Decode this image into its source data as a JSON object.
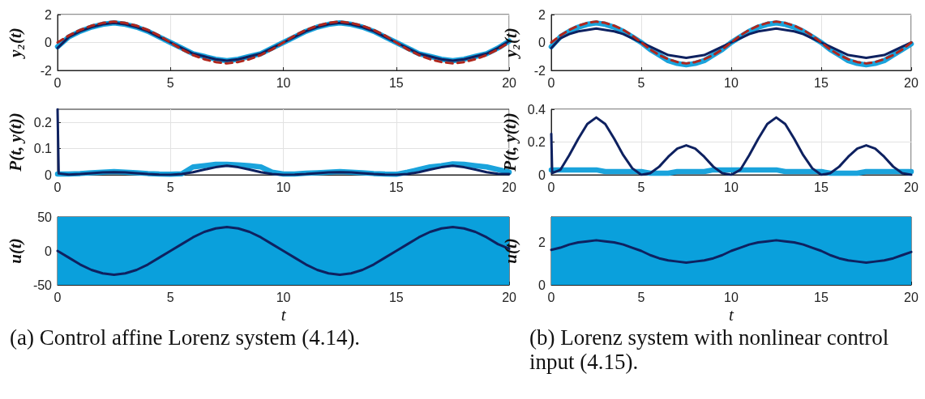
{
  "chart_data": [
    {
      "type": "line",
      "ylabel": "y₂(t)",
      "x": [
        0,
        0.5,
        1,
        1.5,
        2,
        2.5,
        3,
        3.5,
        4,
        4.5,
        5,
        5.5,
        6,
        6.5,
        7,
        7.5,
        8,
        8.5,
        9,
        9.5,
        10,
        10.5,
        11,
        11.5,
        12,
        12.5,
        13,
        13.5,
        14,
        14.5,
        15,
        15.5,
        16,
        16.5,
        17,
        17.5,
        18,
        18.5,
        19,
        19.5,
        20
      ],
      "xlim": [
        0,
        20
      ],
      "xticks": [
        0,
        5,
        10,
        15,
        20
      ],
      "ylim": [
        -2,
        2
      ],
      "yticks": [
        -2,
        0,
        2
      ],
      "grid": true,
      "marker": "none",
      "series": [
        {
          "color": "#1aa3dc",
          "values": [
            -0.3,
            0.4,
            0.8,
            1.1,
            1.3,
            1.4,
            1.3,
            1.1,
            0.8,
            0.4,
            0,
            -0.4,
            -0.8,
            -1.0,
            -1.2,
            -1.3,
            -1.2,
            -1.0,
            -0.8,
            -0.4,
            0,
            0.4,
            0.8,
            1.1,
            1.3,
            1.4,
            1.3,
            1.1,
            0.8,
            0.4,
            0,
            -0.4,
            -0.8,
            -1.0,
            -1.2,
            -1.3,
            -1.2,
            -1.0,
            -0.8,
            -0.4,
            0.1
          ]
        },
        {
          "color": "#0e2160",
          "values": [
            -0.4,
            0.4,
            0.8,
            1.1,
            1.3,
            1.4,
            1.3,
            1.1,
            0.8,
            0.4,
            0,
            -0.4,
            -0.8,
            -1.0,
            -1.2,
            -1.3,
            -1.2,
            -1.0,
            -0.8,
            -0.4,
            0,
            0.4,
            0.8,
            1.1,
            1.3,
            1.4,
            1.3,
            1.1,
            0.8,
            0.4,
            0,
            -0.4,
            -0.8,
            -1.0,
            -1.2,
            -1.3,
            -1.2,
            -1.0,
            -0.8,
            -0.4,
            0.1
          ]
        },
        {
          "color": "#b0261c",
          "line_style": "dashed",
          "values": [
            0,
            0.5,
            0.9,
            1.2,
            1.4,
            1.5,
            1.4,
            1.2,
            0.9,
            0.5,
            0,
            -0.5,
            -0.9,
            -1.2,
            -1.4,
            -1.5,
            -1.4,
            -1.2,
            -0.9,
            -0.5,
            0,
            0.5,
            0.9,
            1.2,
            1.4,
            1.5,
            1.4,
            1.2,
            0.9,
            0.5,
            0,
            -0.5,
            -0.9,
            -1.2,
            -1.4,
            -1.5,
            -1.4,
            -1.2,
            -0.9,
            -0.5,
            0
          ]
        }
      ]
    },
    {
      "type": "line",
      "ylabel": "y₂(t)",
      "x": [
        0,
        0.5,
        1,
        1.5,
        2,
        2.5,
        3,
        3.5,
        4,
        4.5,
        5,
        5.5,
        6,
        6.5,
        7,
        7.5,
        8,
        8.5,
        9,
        9.5,
        10,
        10.5,
        11,
        11.5,
        12,
        12.5,
        13,
        13.5,
        14,
        14.5,
        15,
        15.5,
        16,
        16.5,
        17,
        17.5,
        18,
        18.5,
        19,
        19.5,
        20
      ],
      "xlim": [
        0,
        20
      ],
      "xticks": [
        0,
        5,
        10,
        15,
        20
      ],
      "ylim": [
        -2,
        2
      ],
      "yticks": [
        -2,
        0,
        2
      ],
      "grid": true,
      "marker": "none",
      "series": [
        {
          "color": "#1aa3dc",
          "values": [
            -0.3,
            0.4,
            0.8,
            1.1,
            1.3,
            1.4,
            1.3,
            1.1,
            0.8,
            0.4,
            0,
            -0.5,
            -0.9,
            -1.3,
            -1.5,
            -1.6,
            -1.5,
            -1.3,
            -0.9,
            -0.5,
            0,
            0.4,
            0.8,
            1.1,
            1.3,
            1.4,
            1.3,
            1.1,
            0.8,
            0.4,
            0,
            -0.5,
            -0.9,
            -1.3,
            -1.5,
            -1.6,
            -1.5,
            -1.3,
            -0.9,
            -0.5,
            -0.1
          ]
        },
        {
          "color": "#0e2160",
          "values": [
            -0.4,
            0.3,
            0.6,
            0.8,
            0.9,
            1.0,
            0.9,
            0.8,
            0.6,
            0.3,
            0,
            -0.3,
            -0.6,
            -0.9,
            -1.0,
            -1.1,
            -1.0,
            -0.9,
            -0.6,
            -0.3,
            0,
            0.3,
            0.6,
            0.8,
            0.9,
            1.0,
            0.9,
            0.8,
            0.6,
            0.3,
            0,
            -0.3,
            -0.6,
            -0.9,
            -1.0,
            -1.1,
            -1.0,
            -0.9,
            -0.6,
            -0.3,
            0
          ]
        },
        {
          "color": "#b0261c",
          "line_style": "dashed",
          "values": [
            0,
            0.5,
            0.9,
            1.2,
            1.4,
            1.5,
            1.4,
            1.2,
            0.9,
            0.5,
            0,
            -0.5,
            -0.9,
            -1.2,
            -1.4,
            -1.5,
            -1.4,
            -1.2,
            -0.9,
            -0.5,
            0,
            0.5,
            0.9,
            1.2,
            1.4,
            1.5,
            1.4,
            1.2,
            0.9,
            0.5,
            0,
            -0.5,
            -0.9,
            -1.2,
            -1.4,
            -1.5,
            -1.4,
            -1.2,
            -0.9,
            -0.5,
            0
          ]
        }
      ]
    },
    {
      "type": "line",
      "ylabel": "P(t, y(t))",
      "x": [
        0,
        0.5,
        1,
        1.5,
        2,
        2.5,
        3,
        3.5,
        4,
        4.5,
        5,
        5.5,
        6,
        6.5,
        7,
        7.5,
        8,
        8.5,
        9,
        9.5,
        10,
        10.5,
        11,
        11.5,
        12,
        12.5,
        13,
        13.5,
        14,
        14.5,
        15,
        15.5,
        16,
        16.5,
        17,
        17.5,
        18,
        18.5,
        19,
        19.5,
        20
      ],
      "xlim": [
        0,
        20
      ],
      "xticks": [
        0,
        5,
        10,
        15,
        20
      ],
      "ylim": [
        0,
        0.25
      ],
      "yticks": [
        0,
        0.1,
        0.2
      ],
      "grid": true,
      "marker": "none",
      "series": [
        {
          "color": "#1aa3dc",
          "values": [
            0.003,
            0.003,
            0.005,
            0.008,
            0.01,
            0.012,
            0.01,
            0.008,
            0.005,
            0.003,
            0.002,
            0.004,
            0.03,
            0.035,
            0.04,
            0.04,
            0.038,
            0.035,
            0.03,
            0.01,
            0.003,
            0.003,
            0.006,
            0.008,
            0.01,
            0.012,
            0.01,
            0.008,
            0.005,
            0.003,
            0.002,
            0.01,
            0.02,
            0.03,
            0.035,
            0.042,
            0.04,
            0.035,
            0.03,
            0.02,
            0.01
          ]
        },
        {
          "color": "#0e2160",
          "x": [
            0,
            0.05,
            0.5,
            1,
            1.5,
            2,
            2.5,
            3,
            3.5,
            4,
            4.5,
            5,
            5.5,
            6,
            6.5,
            7,
            7.5,
            8,
            8.5,
            9,
            9.5,
            10,
            10.5,
            11,
            11.5,
            12,
            12.5,
            13,
            13.5,
            14,
            14.5,
            15,
            15.5,
            16,
            16.5,
            17,
            17.5,
            18,
            18.5,
            19,
            19.5,
            20
          ],
          "values": [
            0.25,
            0.005,
            0.001,
            0.003,
            0.006,
            0.009,
            0.01,
            0.009,
            0.006,
            0.003,
            0.001,
            0,
            0.003,
            0.01,
            0.02,
            0.029,
            0.035,
            0.029,
            0.02,
            0.01,
            0.003,
            0,
            0.001,
            0.003,
            0.006,
            0.009,
            0.01,
            0.009,
            0.006,
            0.003,
            0.001,
            0,
            0.003,
            0.01,
            0.02,
            0.029,
            0.035,
            0.029,
            0.02,
            0.01,
            0.004,
            0.003
          ]
        }
      ]
    },
    {
      "type": "line",
      "ylabel": "P(t, y(t))",
      "x": [
        0,
        0.5,
        1,
        1.5,
        2,
        2.5,
        3,
        3.5,
        4,
        4.5,
        5,
        5.5,
        6,
        6.5,
        7,
        7.5,
        8,
        8.5,
        9,
        9.5,
        10,
        10.5,
        11,
        11.5,
        12,
        12.5,
        13,
        13.5,
        14,
        14.5,
        15,
        15.5,
        16,
        16.5,
        17,
        17.5,
        18,
        18.5,
        19,
        19.5,
        20
      ],
      "xlim": [
        0,
        20
      ],
      "xticks": [
        0,
        5,
        10,
        15,
        20
      ],
      "ylim": [
        0,
        0.4
      ],
      "yticks": [
        0,
        0.2,
        0.4
      ],
      "grid": true,
      "marker": "none",
      "series": [
        {
          "color": "#1aa3dc",
          "values": [
            0.03,
            0.03,
            0.03,
            0.03,
            0.03,
            0.03,
            0.02,
            0.02,
            0.02,
            0.02,
            0.02,
            0.01,
            0.01,
            0.01,
            0.02,
            0.02,
            0.02,
            0.02,
            0.03,
            0.03,
            0.03,
            0.03,
            0.03,
            0.03,
            0.03,
            0.03,
            0.02,
            0.02,
            0.02,
            0.02,
            0.02,
            0.01,
            0.01,
            0.01,
            0.01,
            0.02,
            0.02,
            0.02,
            0.02,
            0.02,
            0.02
          ]
        },
        {
          "color": "#0e2160",
          "x": [
            0,
            0.05,
            0.5,
            1,
            1.5,
            2,
            2.5,
            3,
            3.5,
            4,
            4.5,
            5,
            5.5,
            6,
            6.5,
            7,
            7.5,
            8,
            8.5,
            9,
            9.5,
            10,
            10.5,
            11,
            11.5,
            12,
            12.5,
            13,
            13.5,
            14,
            14.5,
            15,
            15.5,
            16,
            16.5,
            17,
            17.5,
            18,
            18.5,
            19,
            19.5,
            20
          ],
          "values": [
            0.25,
            0.01,
            0.03,
            0.12,
            0.22,
            0.31,
            0.35,
            0.31,
            0.22,
            0.12,
            0.04,
            0,
            0.01,
            0.05,
            0.11,
            0.16,
            0.18,
            0.16,
            0.11,
            0.05,
            0.01,
            0,
            0.03,
            0.12,
            0.22,
            0.31,
            0.35,
            0.31,
            0.22,
            0.12,
            0.04,
            0,
            0.01,
            0.05,
            0.11,
            0.16,
            0.18,
            0.16,
            0.11,
            0.05,
            0.01,
            0
          ]
        }
      ]
    },
    {
      "type": "line",
      "ylabel": "u(t)",
      "xlabel": "t",
      "x": [
        0,
        0.5,
        1,
        1.5,
        2,
        2.5,
        3,
        3.5,
        4,
        4.5,
        5,
        5.5,
        6,
        6.5,
        7,
        7.5,
        8,
        8.5,
        9,
        9.5,
        10,
        10.5,
        11,
        11.5,
        12,
        12.5,
        13,
        13.5,
        14,
        14.5,
        15,
        15.5,
        16,
        16.5,
        17,
        17.5,
        18,
        18.5,
        19,
        19.5,
        20
      ],
      "xlim": [
        0,
        20
      ],
      "xticks": [
        0,
        5,
        10,
        15,
        20
      ],
      "ylim": [
        -50,
        50
      ],
      "yticks": [
        -50,
        0,
        50
      ],
      "marker": "none",
      "bands": [
        {
          "axis": "y",
          "from": -50,
          "to": 50,
          "color": "#0aa0dc"
        }
      ],
      "series": [
        {
          "color": "#0e2160",
          "values": [
            0,
            -10,
            -20,
            -28,
            -33,
            -35,
            -33,
            -28,
            -20,
            -10,
            0,
            10,
            20,
            28,
            33,
            35,
            33,
            28,
            20,
            10,
            0,
            -10,
            -20,
            -28,
            -33,
            -35,
            -33,
            -28,
            -20,
            -10,
            0,
            10,
            20,
            28,
            33,
            35,
            33,
            28,
            20,
            10,
            3
          ]
        }
      ],
      "annotations": [
        "(a) Control affine Lorenz system (4.14)."
      ]
    },
    {
      "type": "line",
      "ylabel": "u(t)",
      "xlabel": "t",
      "x": [
        0,
        0.5,
        1,
        1.5,
        2,
        2.5,
        3,
        3.5,
        4,
        4.5,
        5,
        5.5,
        6,
        6.5,
        7,
        7.5,
        8,
        8.5,
        9,
        9.5,
        10,
        10.5,
        11,
        11.5,
        12,
        12.5,
        13,
        13.5,
        14,
        14.5,
        15,
        15.5,
        16,
        16.5,
        17,
        17.5,
        18,
        18.5,
        19,
        19.5,
        20
      ],
      "xlim": [
        0,
        20
      ],
      "xticks": [
        0,
        5,
        10,
        15,
        20
      ],
      "ylim": [
        0,
        3.2
      ],
      "yticks": [
        0,
        2
      ],
      "marker": "none",
      "bands": [
        {
          "axis": "y",
          "from": 0,
          "to": 3.2,
          "color": "#0aa0dc"
        }
      ],
      "series": [
        {
          "color": "#0e2160",
          "values": [
            1.65,
            1.75,
            1.9,
            2.0,
            2.05,
            2.1,
            2.05,
            2.0,
            1.9,
            1.75,
            1.6,
            1.4,
            1.25,
            1.15,
            1.1,
            1.05,
            1.1,
            1.15,
            1.25,
            1.4,
            1.6,
            1.75,
            1.9,
            2.0,
            2.05,
            2.1,
            2.05,
            2.0,
            1.9,
            1.75,
            1.6,
            1.4,
            1.25,
            1.15,
            1.1,
            1.05,
            1.1,
            1.15,
            1.25,
            1.4,
            1.55
          ]
        }
      ],
      "annotations": [
        "(b) Lorenz system with nonlinear control input (4.15)."
      ]
    }
  ]
}
